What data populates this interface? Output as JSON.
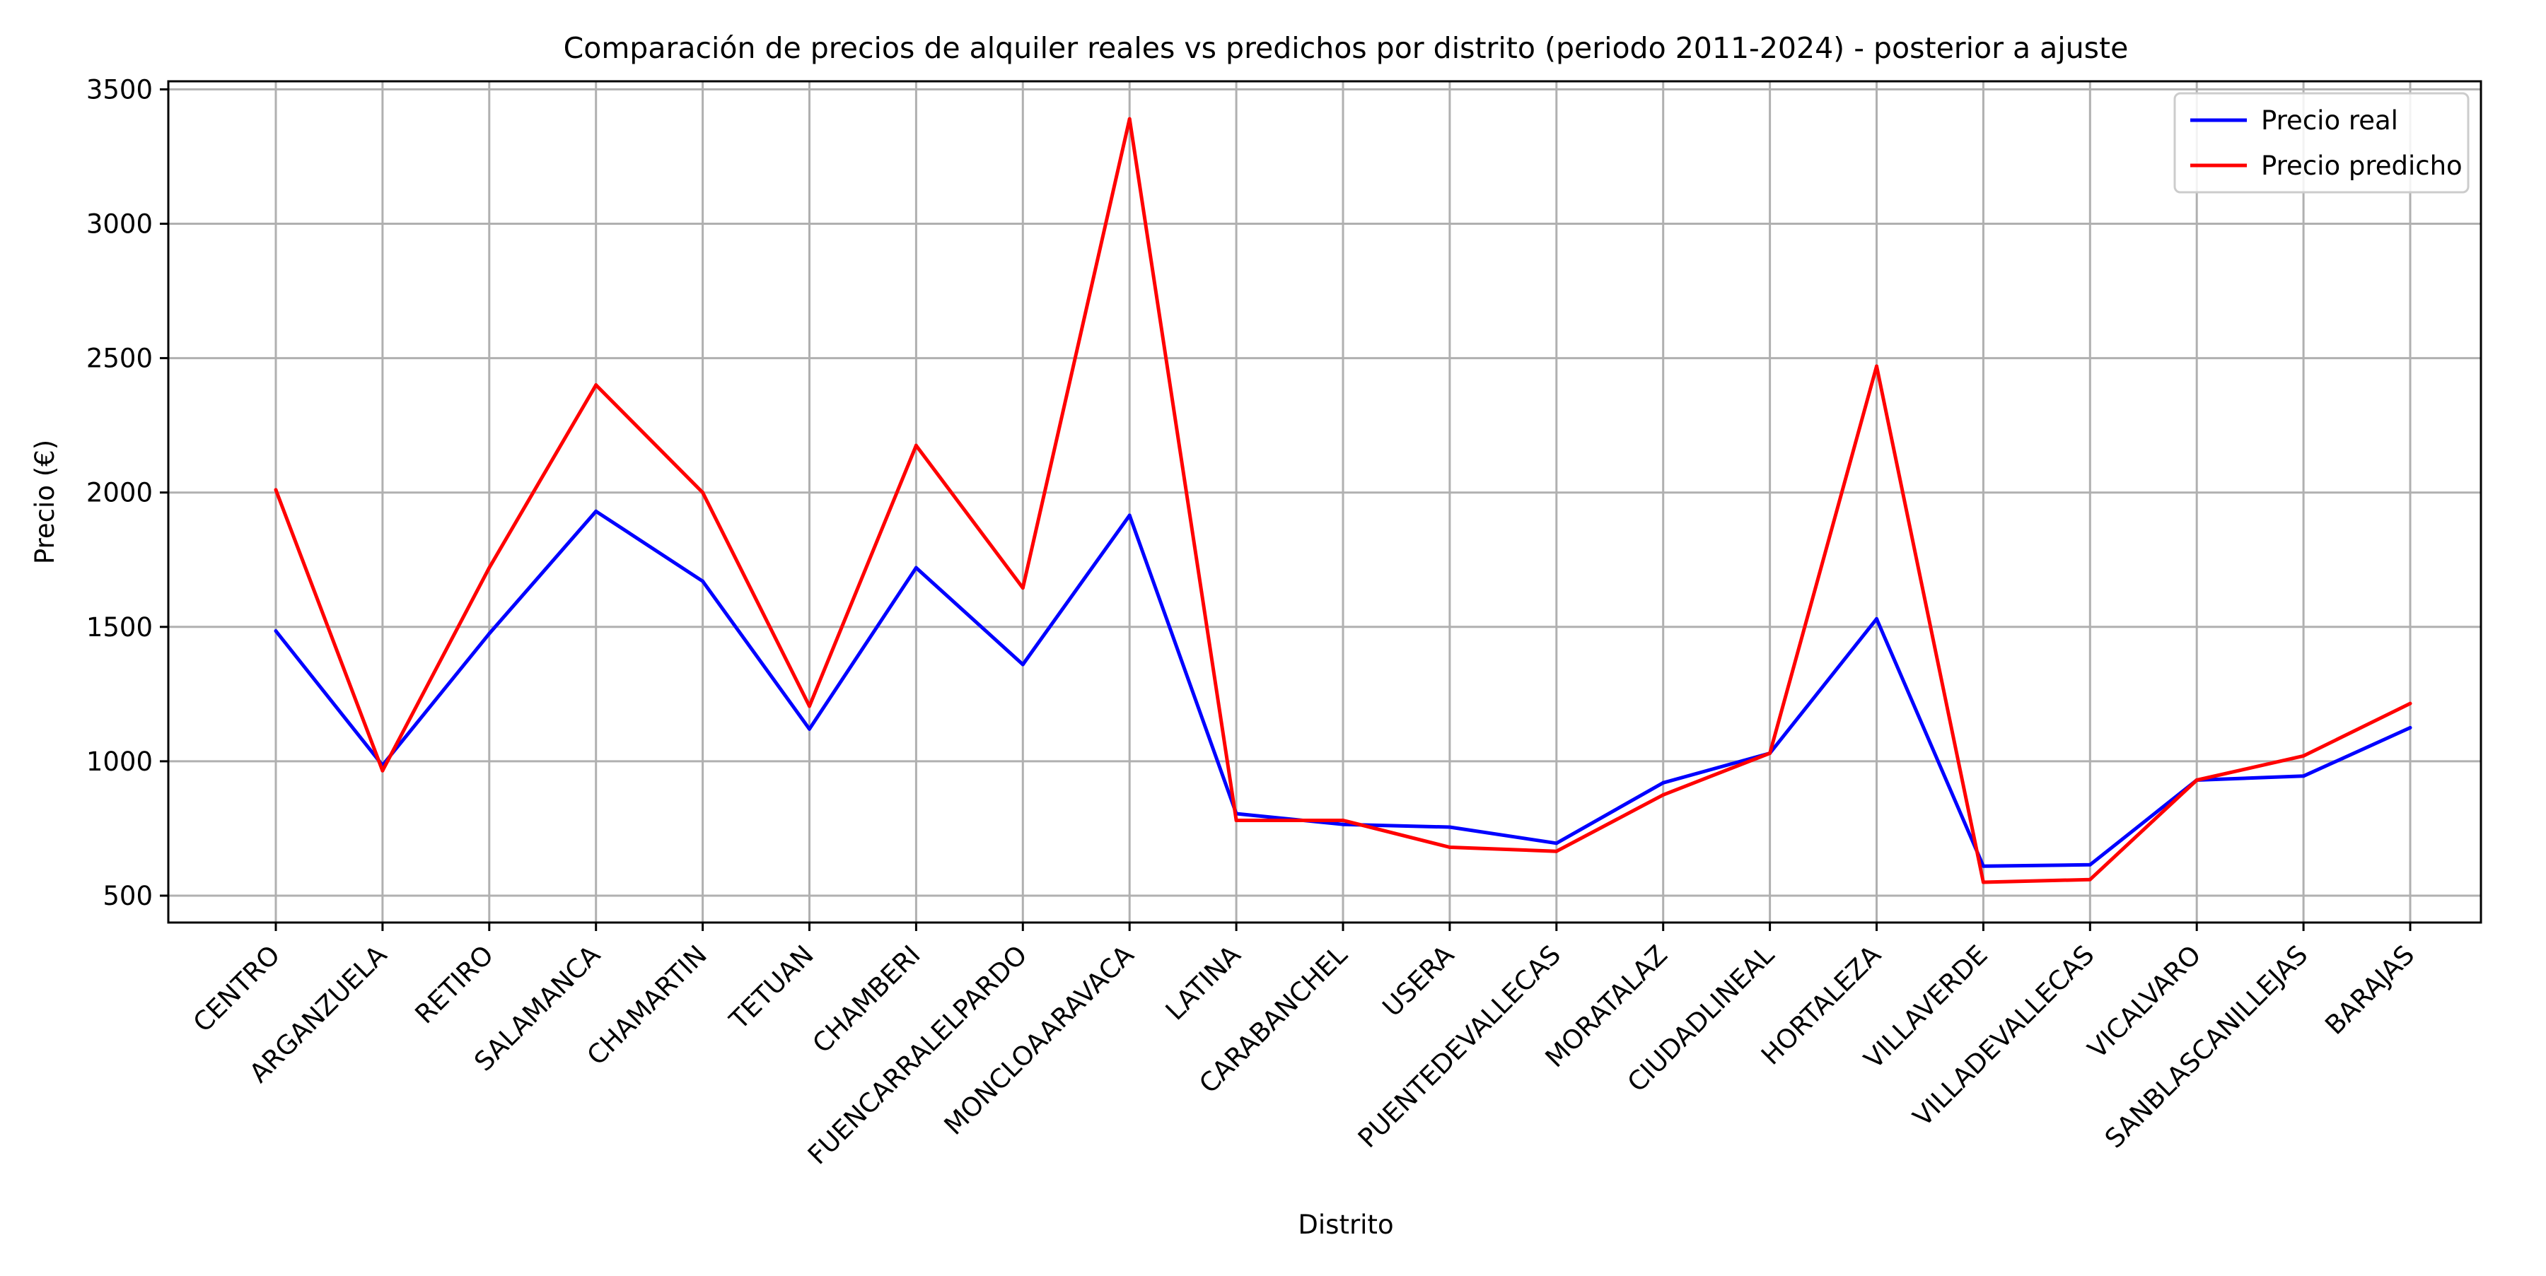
{
  "chart_data": {
    "type": "line",
    "title": "Comparación de precios de alquiler reales vs predichos por distrito (periodo 2011-2024) - posterior a ajuste",
    "xlabel": "Distrito",
    "ylabel": "Precio (€)",
    "ylim": [
      400,
      3530
    ],
    "yticks": [
      500,
      1000,
      1500,
      2000,
      2500,
      3000,
      3500
    ],
    "grid": true,
    "legend_position": "top-right",
    "categories": [
      "CENTRO",
      "ARGANZUELA",
      "RETIRO",
      "SALAMANCA",
      "CHAMARTIN",
      "TETUAN",
      "CHAMBERI",
      "FUENCARRALELPARDO",
      "MONCLOAARAVACA",
      "LATINA",
      "CARABANCHEL",
      "USERA",
      "PUENTEDEVALLECAS",
      "MORATALAZ",
      "CIUDADLINEAL",
      "HORTALEZA",
      "VILLAVERDE",
      "VILLADEVALLECAS",
      "VICALVARO",
      "SANBLASCANILLEJAS",
      "BARAJAS"
    ],
    "series": [
      {
        "name": "Precio real",
        "color": "#0000ff",
        "values": [
          1485,
          985,
          1475,
          1930,
          1670,
          1120,
          1720,
          1360,
          1915,
          805,
          765,
          755,
          695,
          920,
          1030,
          1530,
          610,
          615,
          930,
          945,
          1125
        ]
      },
      {
        "name": "Precio predicho",
        "color": "#ff0000",
        "values": [
          2010,
          965,
          1720,
          2400,
          2000,
          1205,
          2175,
          1645,
          3390,
          780,
          780,
          680,
          665,
          875,
          1030,
          2470,
          550,
          560,
          930,
          1020,
          1215
        ]
      }
    ]
  }
}
